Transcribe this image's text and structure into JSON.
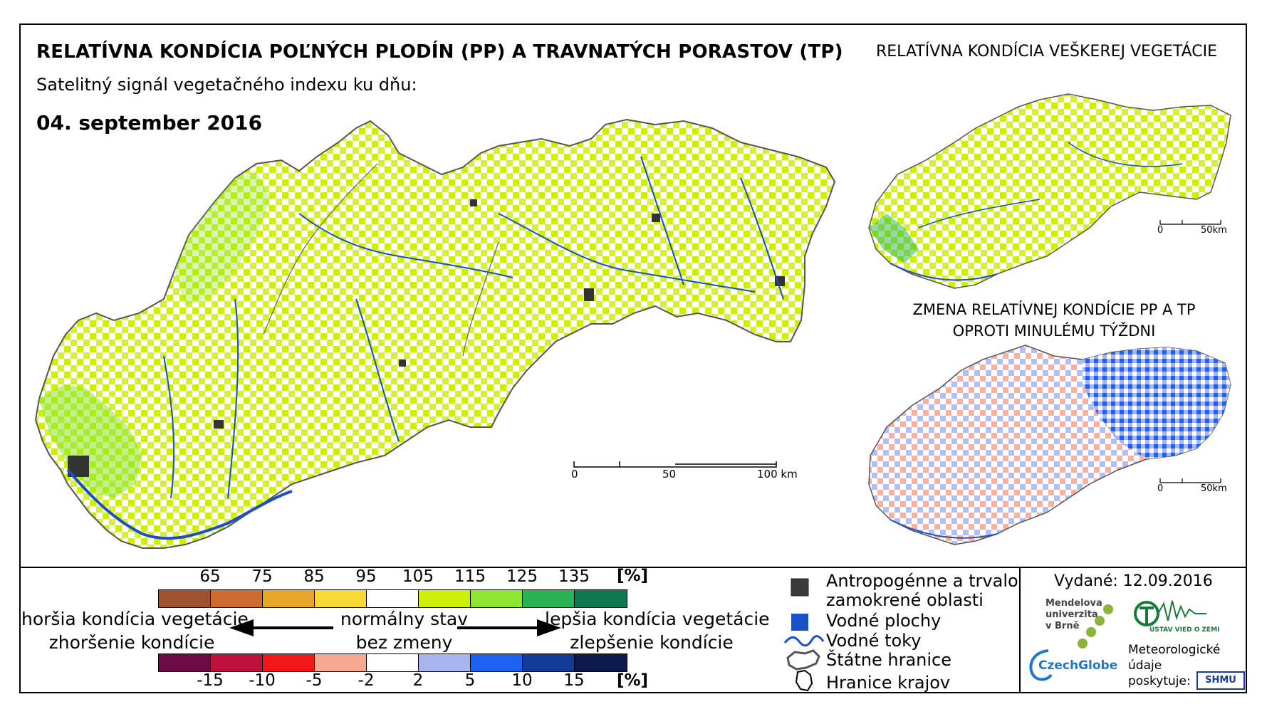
{
  "header": {
    "title": "RELATÍVNA KONDÍCIA POĽNÝCH PLODÍN (PP) A TRAVNATÝCH PORASTOV (TP)",
    "subtitle": "Satelitný signál vegetačného indexu ku dňu:",
    "date": "04. september 2016",
    "right_title": "RELATÍVNA KONDÍCIA VEŠKEREJ VEGETÁCIE",
    "change_title_line1": "ZMENA RELATÍVNEJ KONDÍCIE PP A TP",
    "change_title_line2": "OPROTI MINULÉMU TÝŽDNI"
  },
  "scalebars": {
    "main": {
      "t0": "0",
      "t1": "50",
      "t2": "100 km"
    },
    "inset_top": {
      "t0": "0",
      "t1": "50km"
    },
    "inset_bottom": {
      "t0": "0",
      "t1": "50km"
    }
  },
  "legend": {
    "condition_ticks": [
      "65",
      "75",
      "85",
      "95",
      "105",
      "115",
      "125",
      "135"
    ],
    "condition_unit": "[%]",
    "condition_colors": [
      "#a0522d",
      "#cd6a2e",
      "#e8a628",
      "#f8d834",
      "#ffffff",
      "#ccf00a",
      "#8ee632",
      "#28b454",
      "#0e7850"
    ],
    "change_ticks": [
      "-15",
      "-10",
      "-5",
      "-2",
      "2",
      "5",
      "10",
      "15"
    ],
    "change_unit": "[%]",
    "change_colors": [
      "#6e0a46",
      "#c0103c",
      "#f01818",
      "#f8a890",
      "#ffffff",
      "#a8b4f0",
      "#1c64f0",
      "#103c98",
      "#0c1a50"
    ],
    "worse_line1": "horšia kondícia vegetácie",
    "worse_line2": "zhoršenie kondície",
    "normal_line1": "normálny stav",
    "normal_line2": "bez zmeny",
    "better_line1": "lepšia kondícia vegetácie",
    "better_line2": "zlepšenie kondície",
    "items": {
      "anthro_line1": "Antropogénne a trvalo",
      "anthro_line2": "zamokrené oblasti",
      "water_bodies": "Vodné plochy",
      "streams": "Vodné toky",
      "borders": "Štátne hranice",
      "regions": "Hranice krajov"
    }
  },
  "footer": {
    "issued": "Vydané: 12.09.2016",
    "mendel_line1": "Mendelova",
    "mendel_line2": "univerzita",
    "mendel_line3": "v Brně",
    "czechglobe": "CzechGlobe",
    "meteo_line1": "Meteorologické",
    "meteo_line2": "údaje",
    "meteo_line3": "poskytuje:",
    "ustav": "ÚSTAV VIED O ZEMI",
    "shmu": "SHMU"
  }
}
